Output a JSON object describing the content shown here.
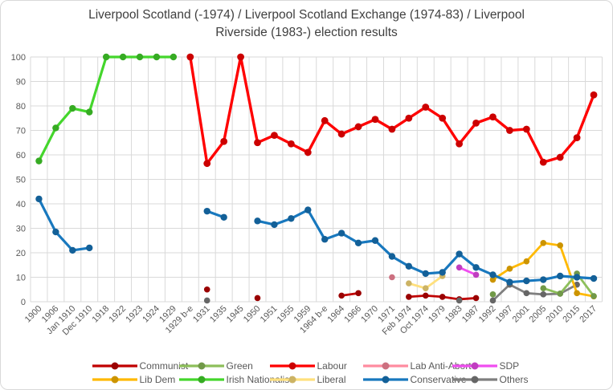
{
  "chart_data": {
    "type": "line",
    "title": "Liverpool Scotland (-1974) / Liverpool Scotland Exchange (1974-83) / Liverpool Riverside (1983-) election results",
    "xlabel": "",
    "ylabel": "",
    "y_axis": {
      "min": 0,
      "max": 100,
      "step": 10
    },
    "grid": true,
    "legend_position": "bottom",
    "categories": [
      "1900",
      "1906",
      "Jan 1910",
      "Dec 1910",
      "1918",
      "1922",
      "1923",
      "1924",
      "1929",
      "1929 b-e",
      "1931",
      "1935",
      "1945",
      "1950",
      "1951",
      "1955",
      "1959",
      "1964 b-e",
      "1964",
      "1966",
      "1970",
      "1971",
      "Feb 1974",
      "Oct 1974",
      "1979",
      "1983",
      "1987",
      "1992",
      "1997",
      "2001",
      "2005",
      "2010",
      "2015",
      "2017"
    ],
    "series": [
      {
        "name": "Communist",
        "color": "#c00000",
        "line_width": 2.8,
        "values": [
          null,
          null,
          null,
          null,
          null,
          null,
          null,
          null,
          null,
          null,
          5,
          null,
          null,
          1.5,
          null,
          null,
          null,
          null,
          2.5,
          3.5,
          null,
          null,
          2,
          2.5,
          2,
          1,
          1.5,
          null,
          null,
          null,
          null,
          null,
          null,
          null
        ]
      },
      {
        "name": "Green",
        "color": "#8dbf5a",
        "line_width": 2.8,
        "values": [
          null,
          null,
          null,
          null,
          null,
          null,
          null,
          null,
          null,
          null,
          null,
          null,
          null,
          null,
          null,
          null,
          null,
          null,
          null,
          null,
          null,
          null,
          null,
          null,
          null,
          null,
          null,
          3,
          null,
          null,
          5.5,
          3.3,
          11.5,
          2.3
        ]
      },
      {
        "name": "Labour",
        "color": "#ff0000",
        "line_width": 3.4,
        "values": [
          null,
          null,
          null,
          null,
          null,
          null,
          null,
          null,
          null,
          100,
          56.5,
          65.5,
          100,
          65,
          68,
          64.5,
          61,
          74,
          68.5,
          71.5,
          74.5,
          70.5,
          75,
          79.5,
          75,
          64.5,
          73,
          75.5,
          70,
          70.5,
          57,
          59,
          67,
          84.5
        ]
      },
      {
        "name": "Lab Anti-Abort",
        "color": "#ff8ca0",
        "line_width": 2.8,
        "values": [
          null,
          null,
          null,
          null,
          null,
          null,
          null,
          null,
          null,
          null,
          null,
          null,
          null,
          null,
          null,
          null,
          null,
          null,
          null,
          null,
          null,
          10,
          null,
          null,
          null,
          null,
          null,
          null,
          null,
          null,
          null,
          null,
          null,
          null
        ]
      },
      {
        "name": "SDP",
        "color": "#f04df0",
        "line_width": 2.8,
        "values": [
          null,
          null,
          null,
          null,
          null,
          null,
          null,
          null,
          null,
          null,
          null,
          null,
          null,
          null,
          null,
          null,
          null,
          null,
          null,
          null,
          null,
          null,
          null,
          null,
          null,
          14,
          11,
          null,
          null,
          null,
          null,
          null,
          null,
          null
        ]
      },
      {
        "name": "Lib Dem",
        "color": "#ffb900",
        "line_width": 2.8,
        "values": [
          null,
          null,
          null,
          null,
          null,
          null,
          null,
          null,
          null,
          null,
          null,
          null,
          null,
          null,
          null,
          null,
          null,
          null,
          null,
          null,
          null,
          null,
          null,
          null,
          null,
          null,
          null,
          9,
          13.5,
          16.5,
          24,
          23,
          3.5,
          2.2
        ]
      },
      {
        "name": "Irish Nationalist",
        "color": "#44d62c",
        "line_width": 3.2,
        "values": [
          57.5,
          71,
          79,
          77.5,
          100,
          100,
          100,
          100,
          100,
          null,
          null,
          null,
          null,
          null,
          null,
          null,
          null,
          null,
          null,
          null,
          null,
          null,
          null,
          null,
          null,
          null,
          null,
          null,
          null,
          null,
          null,
          null,
          null,
          null
        ]
      },
      {
        "name": "Liberal",
        "color": "#ffe07d",
        "line_width": 2.8,
        "values": [
          null,
          null,
          null,
          null,
          null,
          null,
          null,
          null,
          null,
          null,
          null,
          null,
          null,
          null,
          null,
          null,
          null,
          null,
          null,
          null,
          null,
          null,
          7.5,
          5.5,
          10.5,
          null,
          null,
          null,
          null,
          null,
          null,
          null,
          null,
          null
        ]
      },
      {
        "name": "Conservative",
        "color": "#1878be",
        "line_width": 3.2,
        "values": [
          42,
          28.5,
          21,
          22,
          null,
          null,
          null,
          null,
          null,
          null,
          37,
          34.5,
          null,
          33,
          31.5,
          34,
          37.5,
          25.5,
          28,
          24,
          25,
          18.5,
          14.5,
          11.5,
          12,
          19.5,
          14,
          11,
          8,
          8.5,
          9,
          10.5,
          10,
          9.5
        ]
      },
      {
        "name": "Others",
        "color": "#7f7f7f",
        "line_width": 2.8,
        "values": [
          null,
          null,
          null,
          null,
          null,
          null,
          null,
          null,
          null,
          null,
          0.5,
          null,
          null,
          null,
          null,
          null,
          null,
          null,
          null,
          null,
          null,
          null,
          null,
          null,
          null,
          0.5,
          null,
          0.5,
          7,
          3.5,
          3,
          3.3,
          7,
          null
        ]
      }
    ]
  }
}
